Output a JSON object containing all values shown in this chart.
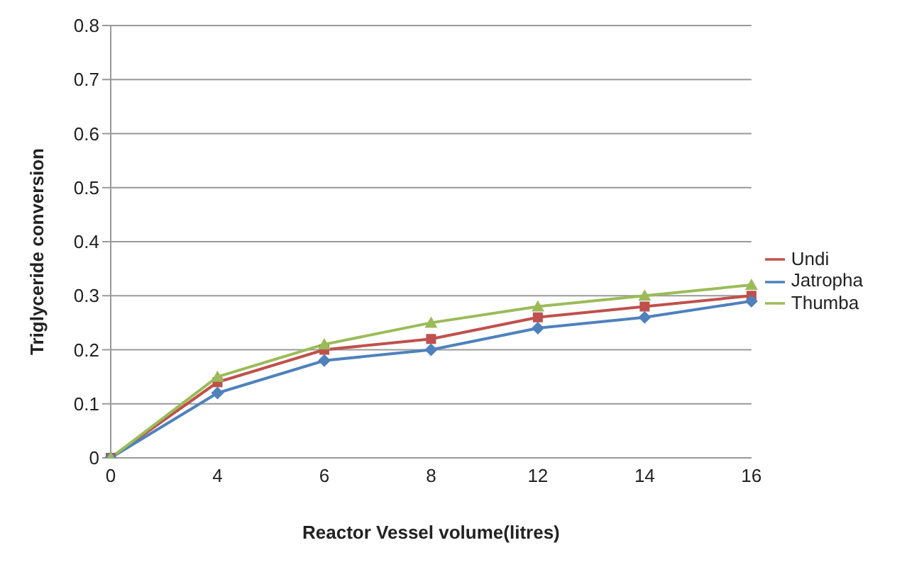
{
  "chart_data": {
    "type": "line",
    "xlabel": "Reactor Vessel volume(litres)",
    "ylabel": "Triglyceride conversion",
    "categories": [
      "0",
      "4",
      "6",
      "8",
      "12",
      "14",
      "16"
    ],
    "series": [
      {
        "name": "Undi",
        "color": "#c0504d",
        "marker": "square",
        "values": [
          0,
          0.14,
          0.2,
          0.22,
          0.26,
          0.28,
          0.3
        ]
      },
      {
        "name": "Jatropha",
        "color": "#4f81bd",
        "marker": "diamond",
        "values": [
          0,
          0.12,
          0.18,
          0.2,
          0.24,
          0.26,
          0.29
        ]
      },
      {
        "name": "Thumba",
        "color": "#9bbb59",
        "marker": "triangle",
        "values": [
          0,
          0.15,
          0.21,
          0.25,
          0.28,
          0.3,
          0.32
        ]
      }
    ],
    "ylim": [
      0,
      0.8
    ],
    "yticks": [
      0,
      0.1,
      0.2,
      0.3,
      0.4,
      0.5,
      0.6,
      0.7,
      0.8
    ],
    "grid": "y",
    "legend": "right",
    "line_style": "solid"
  }
}
